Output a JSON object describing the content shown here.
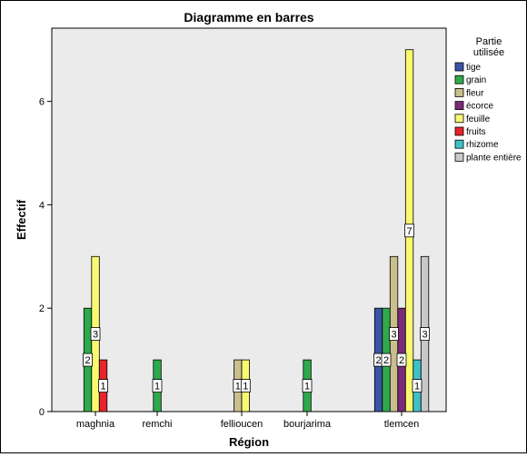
{
  "chart_data": {
    "type": "bar",
    "title": "Diagramme en barres",
    "xlabel": "Région",
    "ylabel": "Effectif",
    "categories": [
      "maghnia",
      "remchi",
      "fellioucen",
      "bourjarima",
      "tlemcen"
    ],
    "ylim": [
      0,
      7.5
    ],
    "yticks": [
      0,
      2,
      4,
      6
    ],
    "grid": false,
    "legend_title": "Partie utilisée",
    "legend_position": "right",
    "plot_background": "#ebebeb",
    "series": [
      {
        "name": "tige",
        "color": "#3a54a4",
        "values": [
          0,
          0,
          0,
          0,
          2
        ]
      },
      {
        "name": "grain",
        "color": "#2eaa4a",
        "values": [
          2,
          1,
          0,
          1,
          2
        ]
      },
      {
        "name": "fleur",
        "color": "#cabf8c",
        "values": [
          0,
          0,
          1,
          0,
          3
        ]
      },
      {
        "name": "écorce",
        "color": "#7a2a78",
        "values": [
          0,
          0,
          0,
          0,
          2
        ]
      },
      {
        "name": "feuille",
        "color": "#f9f871",
        "values": [
          3,
          0,
          1,
          0,
          7
        ]
      },
      {
        "name": "fruits",
        "color": "#e8242c",
        "values": [
          1,
          0,
          0,
          0,
          0
        ]
      },
      {
        "name": "rhizome",
        "color": "#3fc1c9",
        "values": [
          0,
          0,
          0,
          0,
          1
        ]
      },
      {
        "name": "plante entière",
        "color": "#c9c9c9",
        "values": [
          0,
          0,
          0,
          0,
          3
        ]
      }
    ]
  }
}
